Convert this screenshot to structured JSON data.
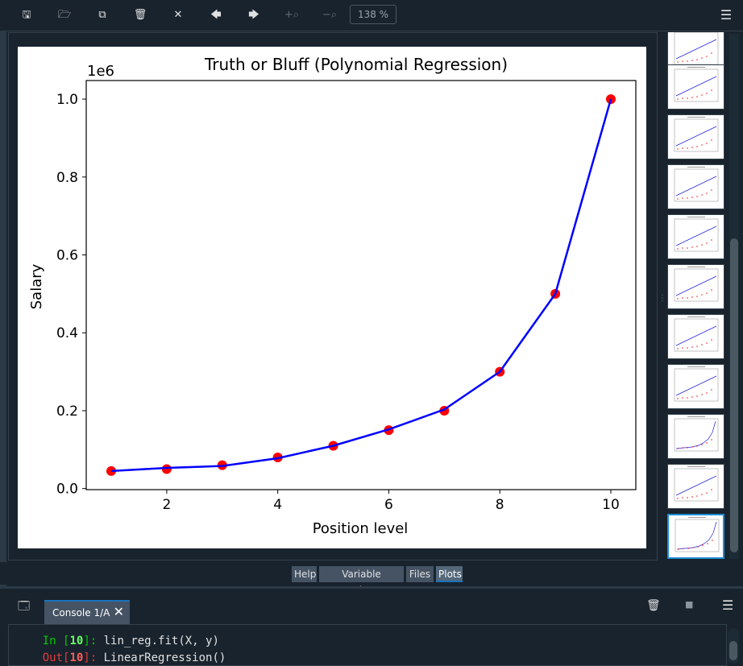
{
  "toolbar": {
    "buttons": [
      {
        "name": "save-plot-button",
        "icon": "save-icon",
        "glyph": "🖫",
        "dim": false
      },
      {
        "name": "save-all-button",
        "icon": "save-all-icon",
        "glyph": "🗁",
        "dim": false
      },
      {
        "name": "copy-button",
        "icon": "copy-icon",
        "glyph": "⧉",
        "dim": false
      },
      {
        "name": "remove-plot-button",
        "icon": "trash-icon",
        "glyph": "🗑",
        "dim": false
      },
      {
        "name": "remove-all-button",
        "icon": "close-all-icon",
        "glyph": "✕",
        "dim": false
      },
      {
        "name": "previous-plot-button",
        "icon": "arrow-left-icon",
        "glyph": "🡄",
        "dim": false
      },
      {
        "name": "next-plot-button",
        "icon": "arrow-right-icon",
        "glyph": "🡆",
        "dim": false
      },
      {
        "name": "zoom-in-button",
        "icon": "zoom-in-icon",
        "glyph": "+⌕",
        "dim": true
      },
      {
        "name": "zoom-out-button",
        "icon": "zoom-out-icon",
        "glyph": "−⌕",
        "dim": true
      }
    ],
    "zoom": "138 %",
    "menu_icon": "hamburger-icon"
  },
  "chart_data": {
    "type": "line",
    "title": "Truth or Bluff (Polynomial Regression)",
    "xlabel": "Position level",
    "ylabel": "Salary",
    "offset_label": "1e6",
    "x": [
      1,
      2,
      3,
      4,
      5,
      6,
      7,
      8,
      9,
      10
    ],
    "series": [
      {
        "kind": "scatter",
        "color": "#ff0000",
        "values": [
          45000,
          50000,
          60000,
          80000,
          110000,
          150000,
          200000,
          300000,
          500000,
          1000000
        ]
      },
      {
        "kind": "line",
        "color": "#0000ff",
        "values": [
          45000,
          53000,
          58000,
          78000,
          110000,
          152000,
          203000,
          300000,
          500000,
          1000000
        ]
      }
    ],
    "xlim": [
      0.55,
      10.45
    ],
    "ylim": [
      -2750,
      1047750
    ],
    "xticks": [
      2,
      4,
      6,
      8,
      10
    ],
    "xtick_labels": [
      "2",
      "4",
      "6",
      "8",
      "10"
    ],
    "yticks": [
      0,
      200000,
      400000,
      600000,
      800000,
      1000000
    ],
    "ytick_labels": [
      "0.0",
      "0.2",
      "0.4",
      "0.6",
      "0.8",
      "1.0"
    ],
    "grid": false
  },
  "thumbnails": {
    "count": 11,
    "selected_index": 10,
    "poly_indices": [
      8,
      10
    ]
  },
  "tabs": [
    "Help",
    "Variable Explorer",
    "Files",
    "Plots"
  ],
  "console": {
    "tab_label": "Console 1/A",
    "lines": [
      {
        "prefix": "In ",
        "num": "10",
        "suffix": "]: ",
        "code": "lin_reg.fit(X, y)",
        "kind": "in"
      },
      {
        "prefix": "Out[",
        "num": "10",
        "suffix": "]: ",
        "code": "LinearRegression()",
        "kind": "out"
      }
    ]
  }
}
